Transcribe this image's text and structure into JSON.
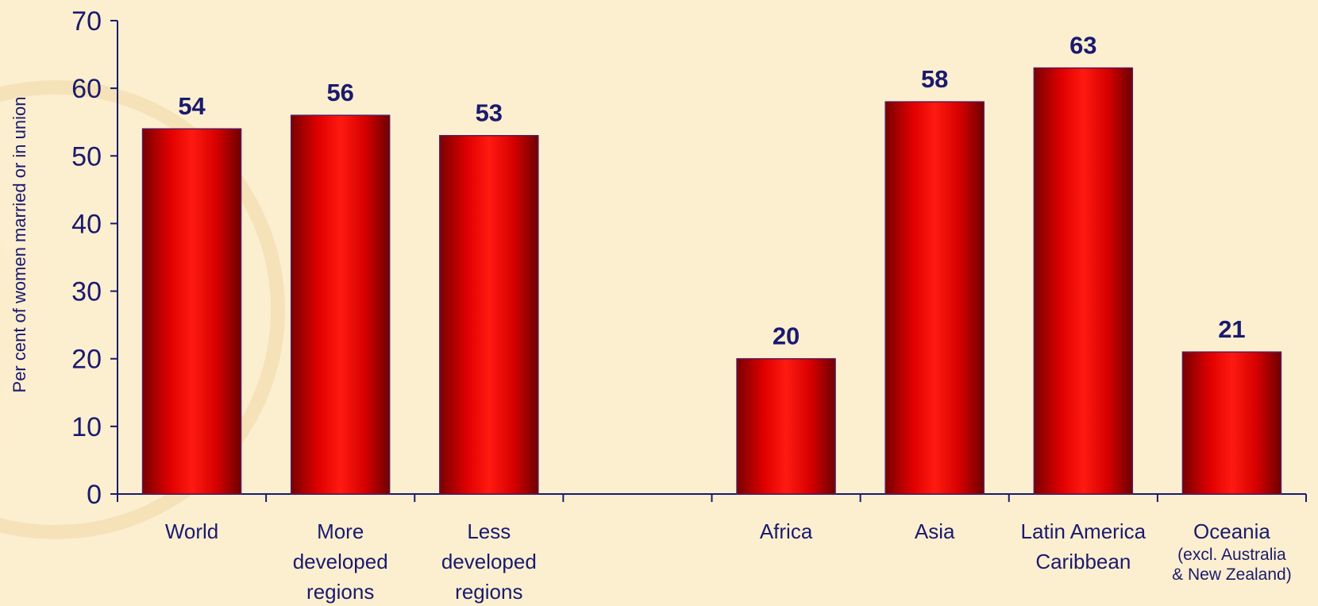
{
  "chart_data": {
    "type": "bar",
    "ylabel": "Per cent of women married or in union",
    "ylim": [
      0,
      70
    ],
    "yticks": [
      0,
      10,
      20,
      30,
      40,
      50,
      60,
      70
    ],
    "grid": false,
    "legend": "none",
    "colors": {
      "bar": "#ff1010",
      "bar_dark": "#7a0000",
      "text": "#1a1a6e",
      "axis": "#1a1a6e",
      "background": "#fcefd0"
    },
    "categories": [
      {
        "label": [
          "World"
        ],
        "sub": [],
        "value": 54
      },
      {
        "label": [
          "More",
          "developed",
          "regions"
        ],
        "sub": [],
        "value": 56
      },
      {
        "label": [
          "Less",
          "developed",
          "regions"
        ],
        "sub": [],
        "value": 53
      },
      {
        "label": [],
        "sub": [],
        "value": null
      },
      {
        "label": [
          "Africa"
        ],
        "sub": [],
        "value": 20
      },
      {
        "label": [
          "Asia"
        ],
        "sub": [],
        "value": 58
      },
      {
        "label": [
          "Latin America",
          "Caribbean"
        ],
        "sub": [],
        "value": 63
      },
      {
        "label": [
          "Oceania"
        ],
        "sub": [
          "(excl. Australia",
          "& New Zealand)"
        ],
        "value": 21
      }
    ]
  }
}
